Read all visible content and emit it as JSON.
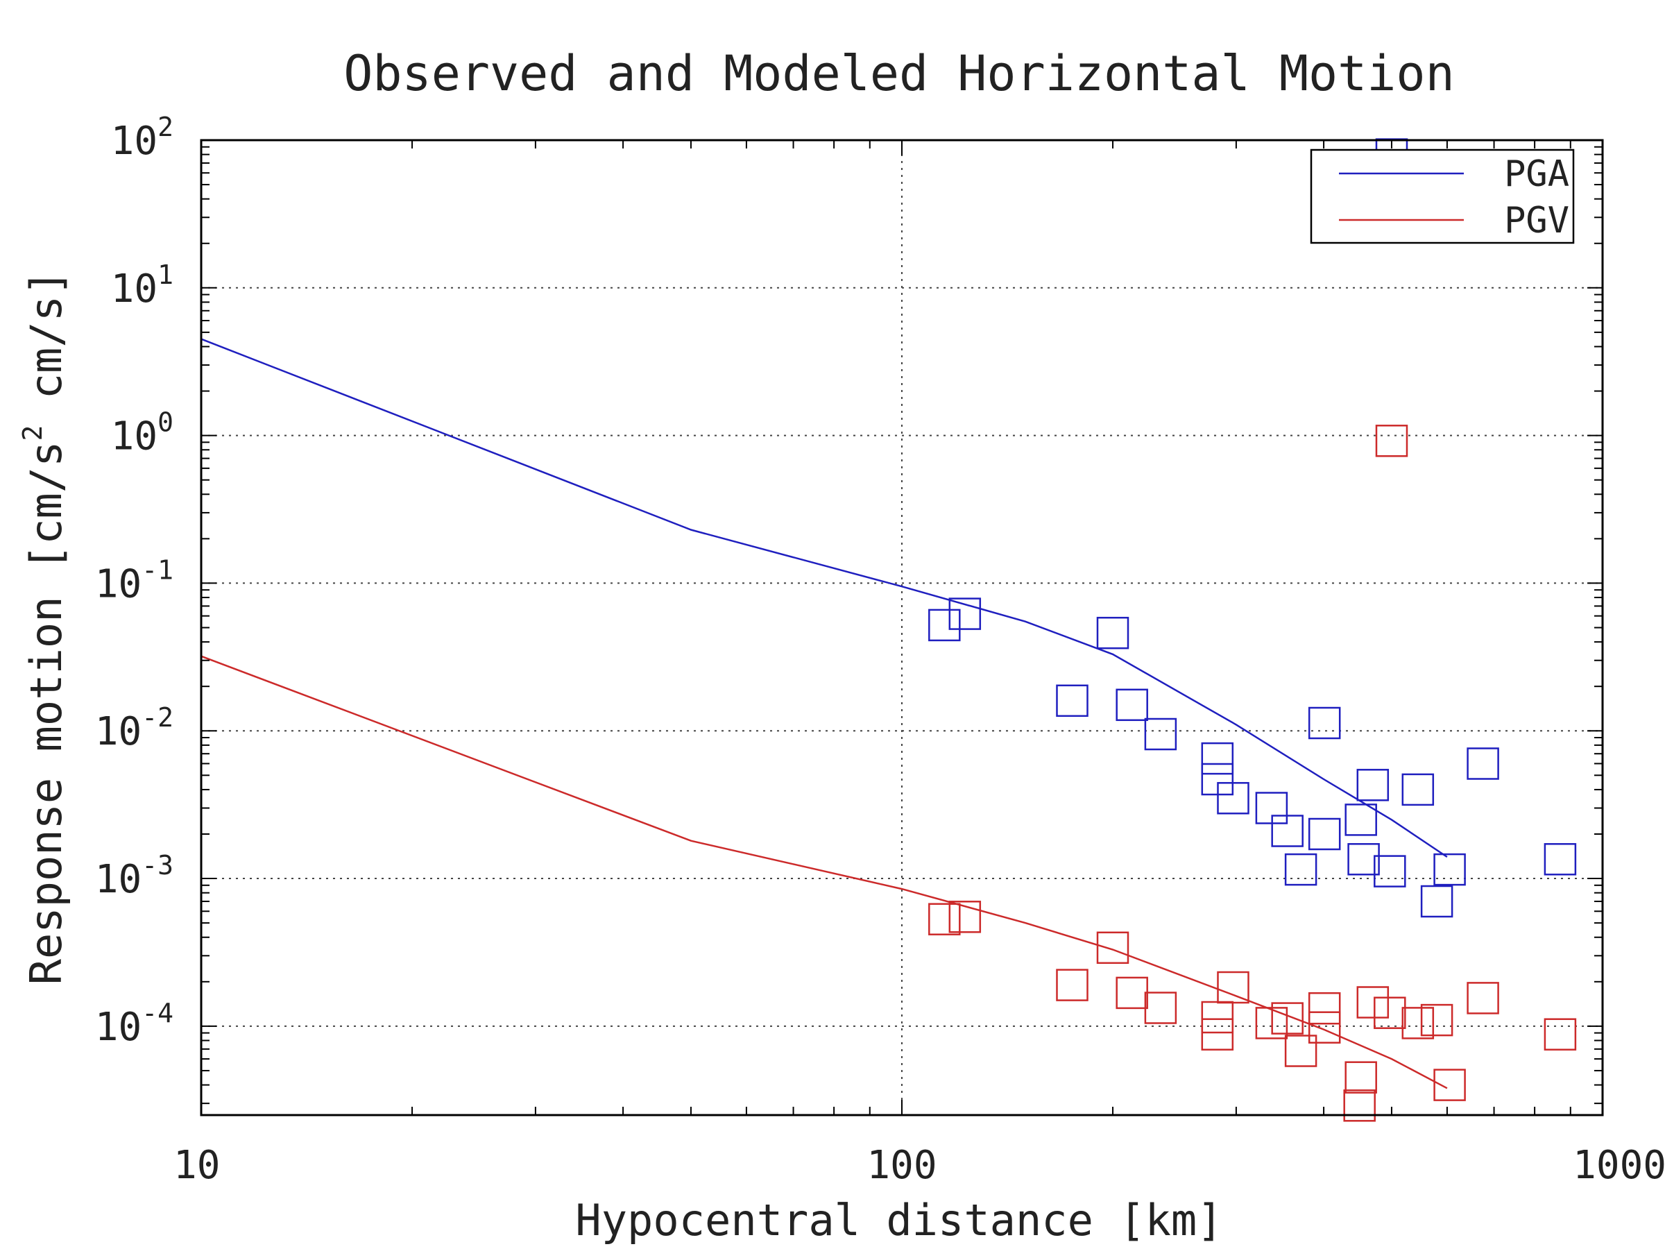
{
  "chart_data": {
    "type": "scatter",
    "title": "Observed and Modeled Horizontal Motion",
    "xlabel": "Hypocentral distance [km]",
    "ylabel": {
      "before": "Response motion [cm/s",
      "sup": "2",
      "after": "  cm/s]"
    },
    "x_scale": "log",
    "y_scale": "log",
    "xlim": [
      10,
      1000
    ],
    "ylim": [
      2.5e-05,
      100
    ],
    "grid": true,
    "legend_position": "top-right",
    "x_ticks": [
      {
        "value": 10,
        "label": "10"
      },
      {
        "value": 100,
        "label": "100"
      },
      {
        "value": 1000,
        "label": "1000"
      }
    ],
    "y_ticks": [
      {
        "value": 100,
        "base": "10",
        "exp": "2"
      },
      {
        "value": 10,
        "base": "10",
        "exp": "1"
      },
      {
        "value": 1,
        "base": "10",
        "exp": "0"
      },
      {
        "value": 0.1,
        "base": "10",
        "exp": "-1"
      },
      {
        "value": 0.01,
        "base": "10",
        "exp": "-2"
      },
      {
        "value": 0.001,
        "base": "10",
        "exp": "-3"
      },
      {
        "value": 0.0001,
        "base": "10",
        "exp": "-4"
      }
    ],
    "series": [
      {
        "name": "PGA",
        "color": "#1f1fbf",
        "model_line": [
          [
            10,
            4.5
          ],
          [
            50,
            0.23
          ],
          [
            100,
            0.095
          ],
          [
            150,
            0.055
          ],
          [
            200,
            0.033
          ],
          [
            300,
            0.011
          ],
          [
            400,
            0.0047
          ],
          [
            500,
            0.0025
          ],
          [
            600,
            0.0014
          ]
        ],
        "observed": [
          [
            115,
            0.052
          ],
          [
            123,
            0.062
          ],
          [
            175,
            0.016
          ],
          [
            200,
            0.046
          ],
          [
            213,
            0.015
          ],
          [
            234,
            0.0095
          ],
          [
            282,
            0.0065
          ],
          [
            282,
            0.0047
          ],
          [
            297,
            0.0035
          ],
          [
            337,
            0.003
          ],
          [
            355,
            0.0021
          ],
          [
            371,
            0.00115
          ],
          [
            401,
            0.0113
          ],
          [
            401,
            0.002
          ],
          [
            452,
            0.0025
          ],
          [
            456,
            0.00135
          ],
          [
            470,
            0.0043
          ],
          [
            497,
            0.00112
          ],
          [
            500,
            80
          ],
          [
            545,
            0.004
          ],
          [
            580,
            0.0007
          ],
          [
            605,
            0.00115
          ],
          [
            675,
            0.006
          ],
          [
            870,
            0.00135
          ]
        ]
      },
      {
        "name": "PGV",
        "color": "#cc2a2a",
        "model_line": [
          [
            10,
            0.032
          ],
          [
            50,
            0.0018
          ],
          [
            100,
            0.00085
          ],
          [
            150,
            0.0005
          ],
          [
            200,
            0.00033
          ],
          [
            300,
            0.00016
          ],
          [
            400,
            9.5e-05
          ],
          [
            500,
            6e-05
          ],
          [
            600,
            3.8e-05
          ]
        ],
        "observed": [
          [
            115,
            0.00053
          ],
          [
            123,
            0.00055
          ],
          [
            175,
            0.00019
          ],
          [
            200,
            0.00034
          ],
          [
            213,
            0.000168
          ],
          [
            234,
            0.000133
          ],
          [
            282,
            0.000115
          ],
          [
            282,
            8.8e-05
          ],
          [
            297,
            0.000183
          ],
          [
            337,
            0.000105
          ],
          [
            355,
            0.000113
          ],
          [
            371,
            6.8e-05
          ],
          [
            401,
            0.000132
          ],
          [
            401,
            9.8e-05
          ],
          [
            452,
            4.5e-05
          ],
          [
            450,
            2.9e-05
          ],
          [
            470,
            0.000145
          ],
          [
            497,
            0.000123
          ],
          [
            500,
            0.92
          ],
          [
            545,
            0.000105
          ],
          [
            580,
            0.00011
          ],
          [
            605,
            4e-05
          ],
          [
            675,
            0.000155
          ],
          [
            870,
            8.8e-05
          ]
        ]
      }
    ]
  }
}
